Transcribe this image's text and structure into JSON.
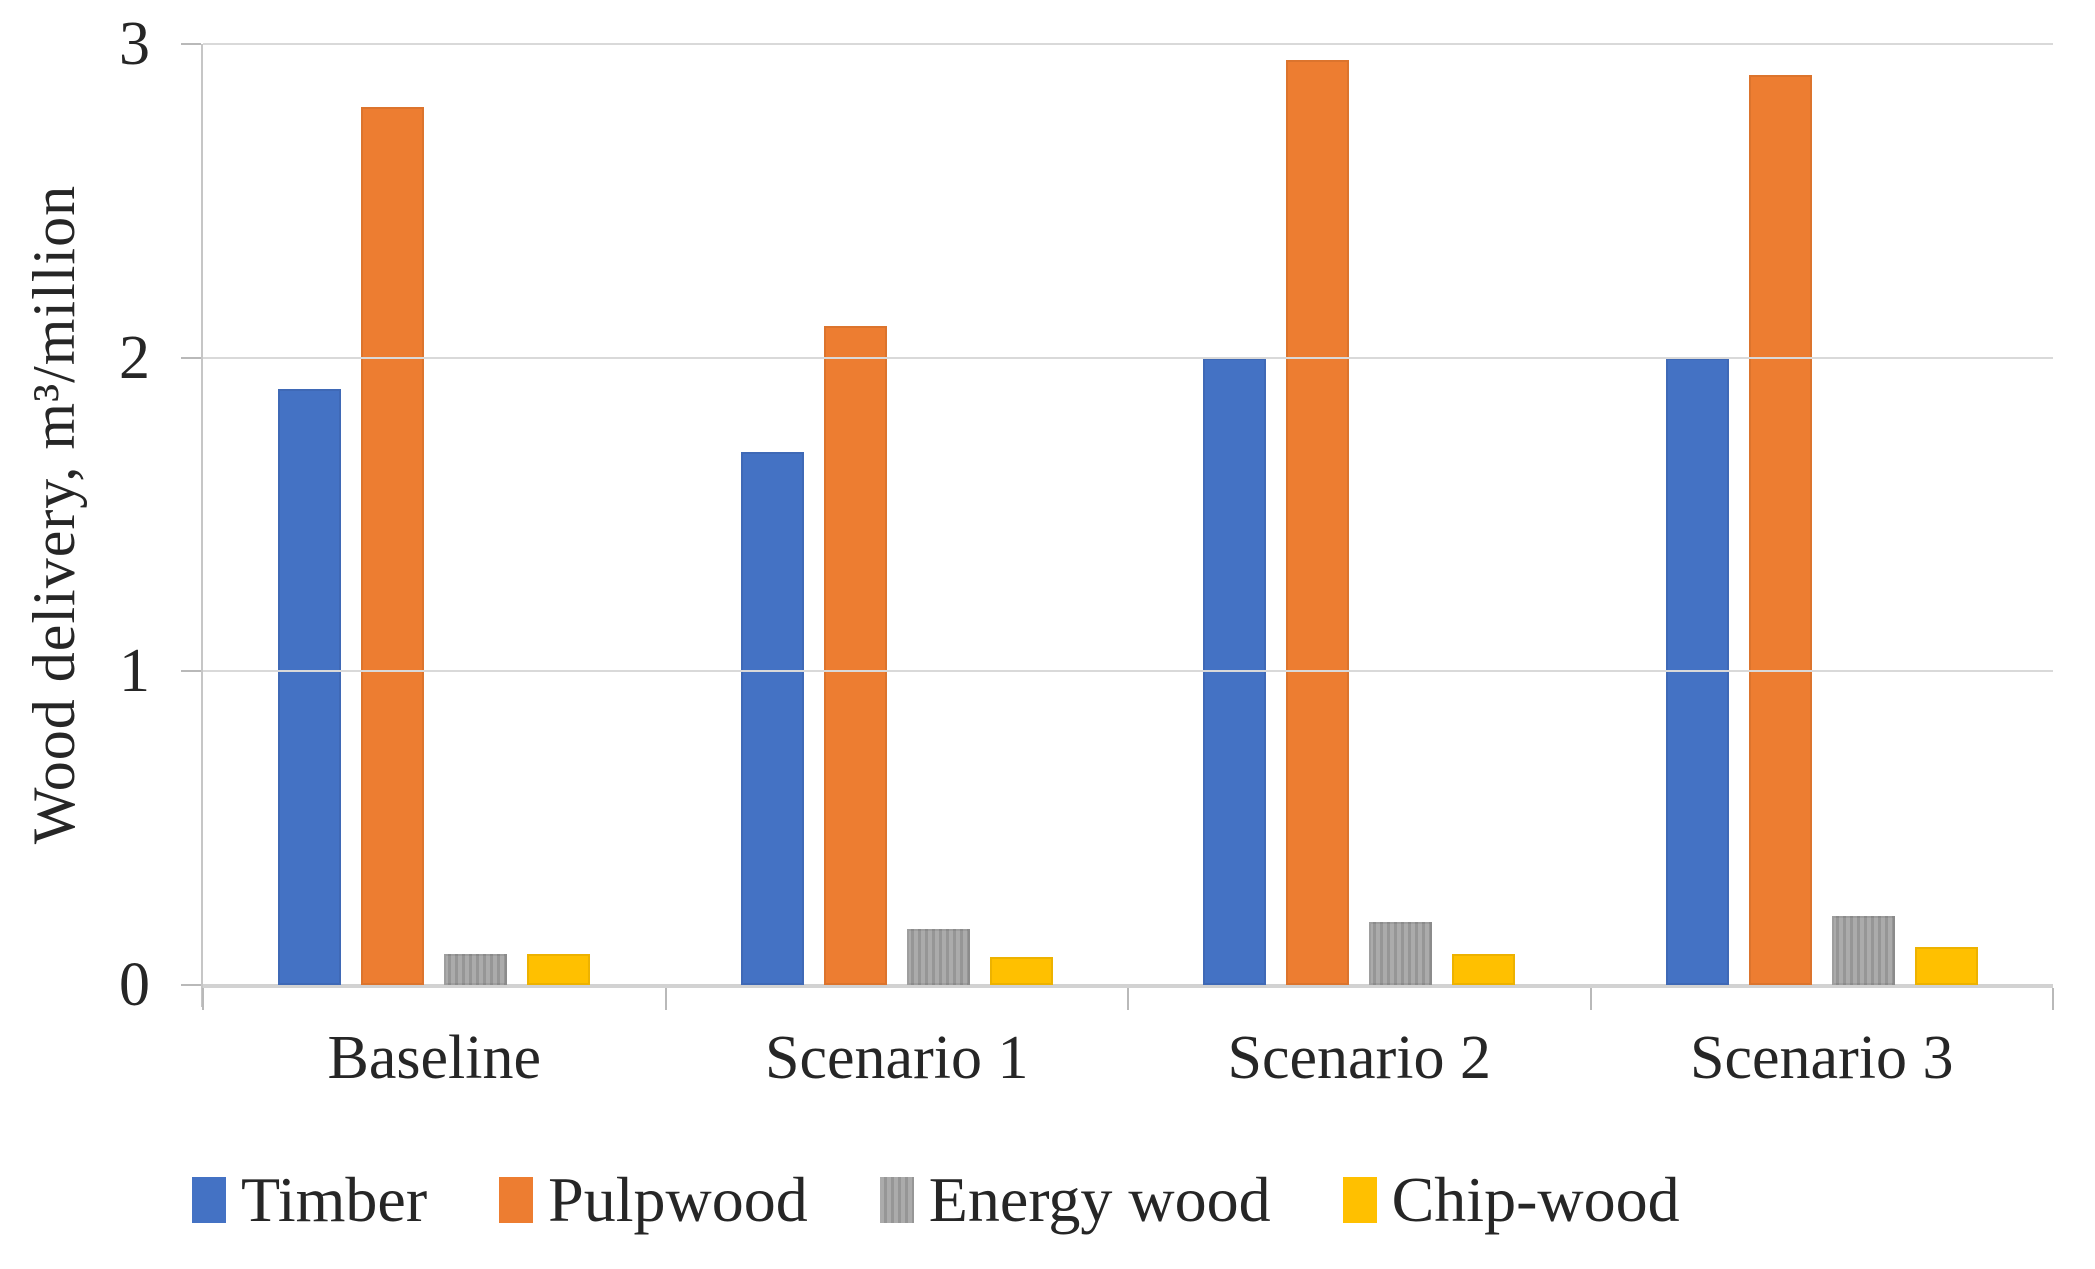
{
  "chart_data": {
    "type": "bar",
    "title": "",
    "categories": [
      "Baseline",
      "Scenario 1",
      "Scenario 2",
      "Scenario 3"
    ],
    "series": [
      {
        "name": "Timber",
        "color": "#4472C4",
        "pattern": "solid",
        "values": [
          1.9,
          1.7,
          2.0,
          2.0
        ]
      },
      {
        "name": "Pulpwood",
        "color": "#ED7D31",
        "pattern": "solid",
        "values": [
          2.8,
          2.1,
          2.95,
          2.9
        ]
      },
      {
        "name": "Energy wood",
        "color": "#A6A6A6",
        "pattern": "vertical-stripes",
        "values": [
          0.1,
          0.18,
          0.2,
          0.22
        ]
      },
      {
        "name": "Chip-wood",
        "color": "#FFC000",
        "pattern": "solid",
        "values": [
          0.1,
          0.09,
          0.1,
          0.12
        ]
      }
    ],
    "xlabel": "",
    "ylabel": "Wood delivery, m³/million",
    "yticks": [
      0,
      1,
      2,
      3
    ],
    "ylim": [
      0,
      3
    ],
    "grid": true,
    "legend_position": "bottom",
    "colors": {
      "gridline": "#D9D9D9",
      "axis": "#C6C6C6",
      "text": "#262626",
      "background": "#FFFFFF"
    }
  }
}
